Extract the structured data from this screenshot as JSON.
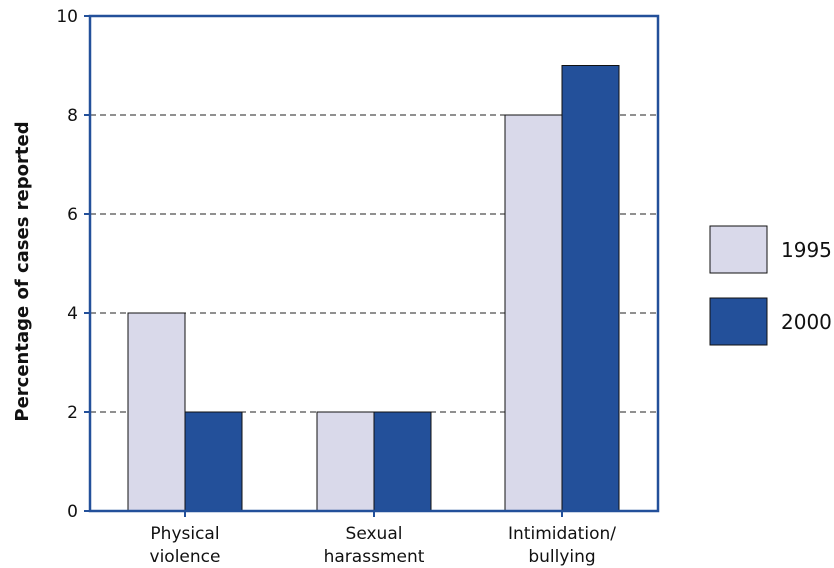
{
  "chart_data": {
    "type": "bar",
    "categories": [
      [
        "Physical",
        "violence"
      ],
      [
        "Sexual",
        "harassment"
      ],
      [
        "Intimidation/",
        "bullying"
      ]
    ],
    "series": [
      {
        "name": "1995",
        "values": [
          4,
          2,
          8
        ],
        "color": "#d9d9ea"
      },
      {
        "name": "2000",
        "values": [
          2,
          2,
          9
        ],
        "color": "#23509a"
      }
    ],
    "ylabel": "Percentage of cases reported",
    "xlabel": "",
    "title": "",
    "ylim": [
      0,
      10
    ],
    "yticks": [
      0,
      2,
      4,
      6,
      8,
      10
    ],
    "grid": "dashed horizontal",
    "legend_position": "right",
    "frame_color": "#23509a"
  }
}
